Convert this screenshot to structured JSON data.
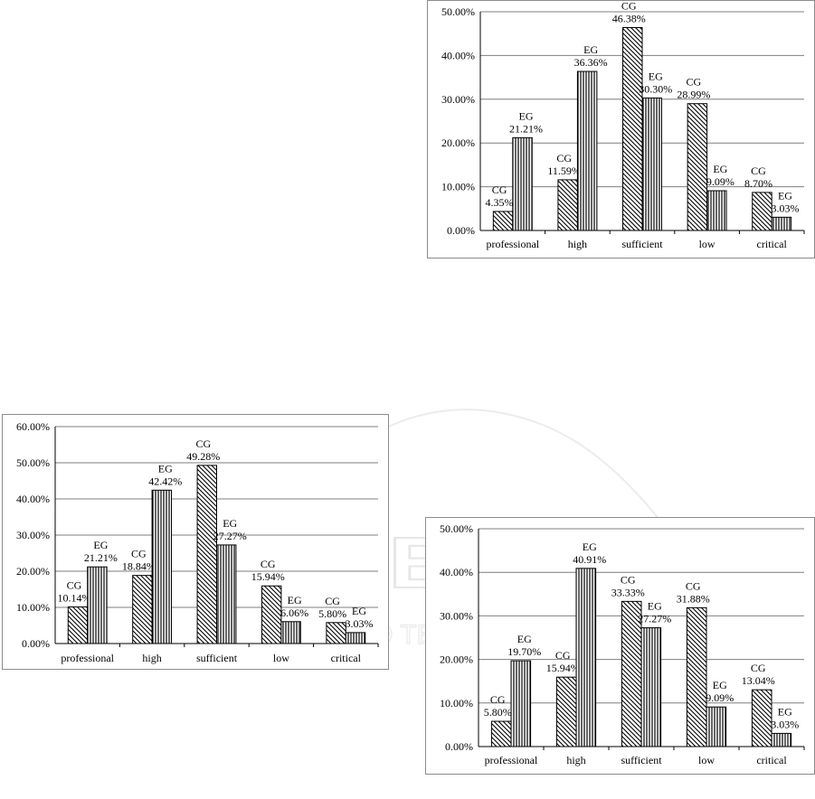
{
  "watermark": {
    "main": "SCITEPRESS",
    "sub": "SCIENCE AND TECHNOLOGY PUBLICATIONS"
  },
  "colors": {
    "bar_stroke": "#000000",
    "grid": "#7f7f7f",
    "border": "#8c8c8c"
  },
  "chart_data": [
    {
      "type": "bar",
      "categories": [
        "professional",
        "high",
        "sufficient",
        "low",
        "critical"
      ],
      "ylim": [
        0,
        50
      ],
      "ytick_step": 10,
      "ytick_labels": [
        "0.00%",
        "10.00%",
        "20.00%",
        "30.00%",
        "40.00%",
        "50.00%"
      ],
      "grid": true,
      "series": [
        {
          "name": "CG",
          "pattern": "diagonal-hatch",
          "values": [
            4.35,
            11.59,
            46.38,
            28.99,
            8.7
          ],
          "labels": [
            "4.35%",
            "11.59%",
            "46.38%",
            "28.99%",
            "8.70%"
          ]
        },
        {
          "name": "EG",
          "pattern": "vertical-hatch",
          "values": [
            21.21,
            36.36,
            30.3,
            9.09,
            3.03
          ],
          "labels": [
            "21.21%",
            "36.36%",
            "30.30%",
            "9.09%",
            "3.03%"
          ]
        }
      ]
    },
    {
      "type": "bar",
      "categories": [
        "professional",
        "high",
        "sufficient",
        "low",
        "critical"
      ],
      "ylim": [
        0,
        60
      ],
      "ytick_step": 10,
      "ytick_labels": [
        "0.00%",
        "10.00%",
        "20.00%",
        "30.00%",
        "40.00%",
        "50.00%",
        "60.00%"
      ],
      "grid": true,
      "series": [
        {
          "name": "CG",
          "pattern": "diagonal-hatch",
          "values": [
            10.14,
            18.84,
            49.28,
            15.94,
            5.8
          ],
          "labels": [
            "10.14%",
            "18.84%",
            "49.28%",
            "15.94%",
            "5.80%"
          ]
        },
        {
          "name": "EG",
          "pattern": "vertical-hatch",
          "values": [
            21.21,
            42.42,
            27.27,
            6.06,
            3.03
          ],
          "labels": [
            "21.21%",
            "42.42%",
            "27.27%",
            "6.06%",
            "3.03%"
          ]
        }
      ]
    },
    {
      "type": "bar",
      "categories": [
        "professional",
        "high",
        "sufficient",
        "low",
        "critical"
      ],
      "ylim": [
        0,
        50
      ],
      "ytick_step": 10,
      "ytick_labels": [
        "0.00%",
        "10.00%",
        "20.00%",
        "30.00%",
        "40.00%",
        "50.00%"
      ],
      "grid": true,
      "series": [
        {
          "name": "CG",
          "pattern": "diagonal-hatch",
          "values": [
            5.8,
            15.94,
            33.33,
            31.88,
            13.04
          ],
          "labels": [
            "5.80%",
            "15.94%",
            "33.33%",
            "31.88%",
            "13.04%"
          ]
        },
        {
          "name": "EG",
          "pattern": "vertical-hatch",
          "values": [
            19.7,
            40.91,
            27.27,
            9.09,
            3.03
          ],
          "labels": [
            "19.70%",
            "40.91%",
            "27.27%",
            "9.09%",
            "3.03%"
          ]
        }
      ]
    }
  ]
}
